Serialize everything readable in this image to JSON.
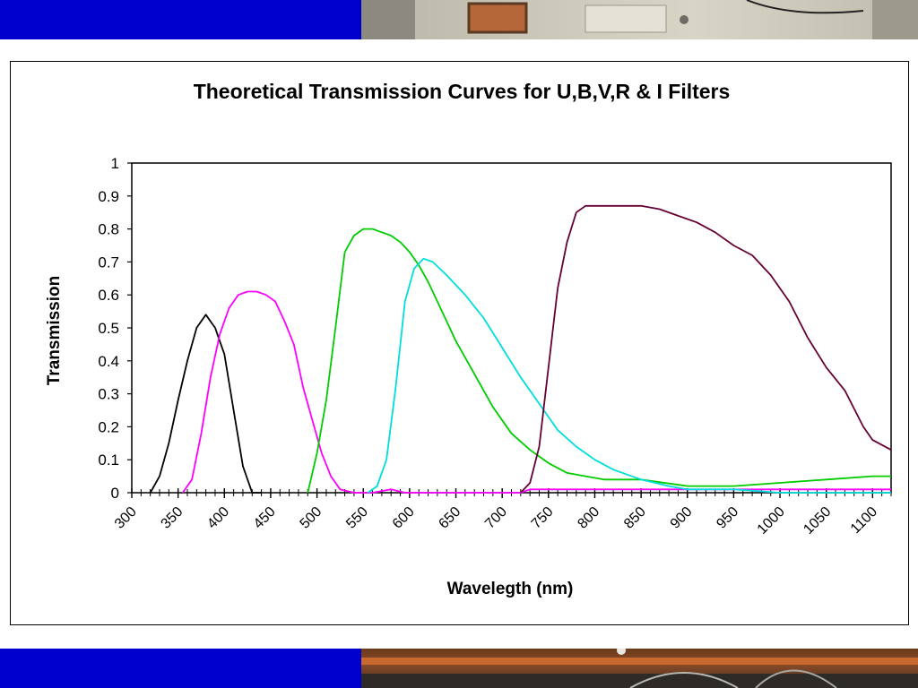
{
  "chart_data": {
    "type": "line",
    "title": "Theoretical Transmission Curves for U,B,V,R & I Filters",
    "xlabel": "Wavelegth (nm)",
    "ylabel": "Transmission",
    "xlim": [
      300,
      1120
    ],
    "ylim": [
      0,
      1
    ],
    "grid": false,
    "legend": "none",
    "x_ticks": [
      "300",
      "350",
      "400",
      "450",
      "500",
      "550",
      "600",
      "650",
      "700",
      "750",
      "800",
      "850",
      "900",
      "950",
      "1000",
      "1050",
      "1100"
    ],
    "y_ticks": [
      "0",
      "0.1",
      "0.2",
      "0.3",
      "0.4",
      "0.5",
      "0.6",
      "0.7",
      "0.8",
      "0.9",
      "1"
    ],
    "series": [
      {
        "color": "#000000",
        "points": [
          [
            320,
            0
          ],
          [
            330,
            0.05
          ],
          [
            340,
            0.15
          ],
          [
            350,
            0.28
          ],
          [
            360,
            0.4
          ],
          [
            370,
            0.5
          ],
          [
            380,
            0.54
          ],
          [
            390,
            0.5
          ],
          [
            400,
            0.42
          ],
          [
            410,
            0.25
          ],
          [
            420,
            0.08
          ],
          [
            430,
            0
          ],
          [
            440,
            0
          ]
        ]
      },
      {
        "color": "#ff00ff",
        "points": [
          [
            355,
            0
          ],
          [
            365,
            0.04
          ],
          [
            375,
            0.18
          ],
          [
            385,
            0.35
          ],
          [
            395,
            0.48
          ],
          [
            405,
            0.56
          ],
          [
            415,
            0.6
          ],
          [
            425,
            0.61
          ],
          [
            435,
            0.61
          ],
          [
            445,
            0.6
          ],
          [
            455,
            0.58
          ],
          [
            465,
            0.52
          ],
          [
            475,
            0.45
          ],
          [
            485,
            0.32
          ],
          [
            495,
            0.22
          ],
          [
            505,
            0.12
          ],
          [
            515,
            0.05
          ],
          [
            525,
            0.01
          ],
          [
            540,
            0
          ],
          [
            560,
            0
          ],
          [
            580,
            0.01
          ],
          [
            595,
            0
          ],
          [
            620,
            0
          ],
          [
            720,
            0
          ],
          [
            730,
            0.01
          ],
          [
            800,
            0.01
          ],
          [
            950,
            0.01
          ],
          [
            1000,
            0.01
          ],
          [
            1050,
            0.01
          ],
          [
            1100,
            0.01
          ],
          [
            1120,
            0.01
          ]
        ]
      },
      {
        "color": "#00cc00",
        "points": [
          [
            490,
            0
          ],
          [
            500,
            0.12
          ],
          [
            510,
            0.28
          ],
          [
            520,
            0.5
          ],
          [
            530,
            0.73
          ],
          [
            540,
            0.78
          ],
          [
            550,
            0.8
          ],
          [
            560,
            0.8
          ],
          [
            570,
            0.79
          ],
          [
            580,
            0.78
          ],
          [
            590,
            0.76
          ],
          [
            600,
            0.73
          ],
          [
            610,
            0.69
          ],
          [
            620,
            0.64
          ],
          [
            630,
            0.58
          ],
          [
            640,
            0.52
          ],
          [
            650,
            0.46
          ],
          [
            670,
            0.36
          ],
          [
            690,
            0.26
          ],
          [
            710,
            0.18
          ],
          [
            730,
            0.13
          ],
          [
            750,
            0.09
          ],
          [
            770,
            0.06
          ],
          [
            790,
            0.05
          ],
          [
            810,
            0.04
          ],
          [
            850,
            0.04
          ],
          [
            900,
            0.02
          ],
          [
            950,
            0.02
          ],
          [
            1000,
            0.03
          ],
          [
            1050,
            0.04
          ],
          [
            1100,
            0.05
          ],
          [
            1120,
            0.05
          ]
        ]
      },
      {
        "color": "#00dddd",
        "points": [
          [
            555,
            0
          ],
          [
            565,
            0.02
          ],
          [
            575,
            0.1
          ],
          [
            585,
            0.32
          ],
          [
            595,
            0.58
          ],
          [
            605,
            0.68
          ],
          [
            615,
            0.71
          ],
          [
            625,
            0.7
          ],
          [
            640,
            0.66
          ],
          [
            660,
            0.6
          ],
          [
            680,
            0.53
          ],
          [
            700,
            0.44
          ],
          [
            720,
            0.35
          ],
          [
            740,
            0.27
          ],
          [
            760,
            0.19
          ],
          [
            780,
            0.14
          ],
          [
            800,
            0.1
          ],
          [
            820,
            0.07
          ],
          [
            850,
            0.04
          ],
          [
            880,
            0.02
          ],
          [
            900,
            0.01
          ],
          [
            950,
            0.01
          ],
          [
            1000,
            0
          ],
          [
            1120,
            0
          ]
        ]
      },
      {
        "color": "#660033",
        "points": [
          [
            720,
            0
          ],
          [
            730,
            0.03
          ],
          [
            740,
            0.14
          ],
          [
            750,
            0.38
          ],
          [
            760,
            0.62
          ],
          [
            770,
            0.76
          ],
          [
            780,
            0.85
          ],
          [
            790,
            0.87
          ],
          [
            820,
            0.87
          ],
          [
            850,
            0.87
          ],
          [
            870,
            0.86
          ],
          [
            890,
            0.84
          ],
          [
            910,
            0.82
          ],
          [
            930,
            0.79
          ],
          [
            950,
            0.75
          ],
          [
            970,
            0.72
          ],
          [
            990,
            0.66
          ],
          [
            1010,
            0.58
          ],
          [
            1030,
            0.47
          ],
          [
            1050,
            0.38
          ],
          [
            1070,
            0.31
          ],
          [
            1090,
            0.2
          ],
          [
            1100,
            0.16
          ],
          [
            1120,
            0.13
          ]
        ]
      }
    ]
  }
}
